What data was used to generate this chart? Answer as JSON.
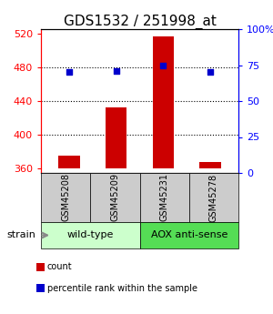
{
  "title": "GDS1532 / 251998_at",
  "samples": [
    "GSM45208",
    "GSM45209",
    "GSM45231",
    "GSM45278"
  ],
  "counts": [
    375,
    432,
    516,
    368
  ],
  "percentiles": [
    70,
    71,
    75,
    70
  ],
  "y_min": 355,
  "y_max": 525,
  "y_ticks_left": [
    360,
    400,
    440,
    480,
    520
  ],
  "y_ticks_right": [
    0,
    25,
    50,
    75,
    100
  ],
  "bar_color": "#cc0000",
  "dot_color": "#0000cc",
  "bar_bottom": 360,
  "groups": [
    {
      "label": "wild-type",
      "samples": [
        0,
        1
      ],
      "color": "#ccffcc"
    },
    {
      "label": "AOX anti-sense",
      "samples": [
        2,
        3
      ],
      "color": "#55dd55"
    }
  ],
  "strain_label": "strain",
  "legend_count_label": "count",
  "legend_pct_label": "percentile rank within the sample",
  "title_fontsize": 11,
  "tick_fontsize": 8,
  "sample_label_fontsize": 7,
  "group_label_fontsize": 8,
  "legend_fontsize": 7
}
